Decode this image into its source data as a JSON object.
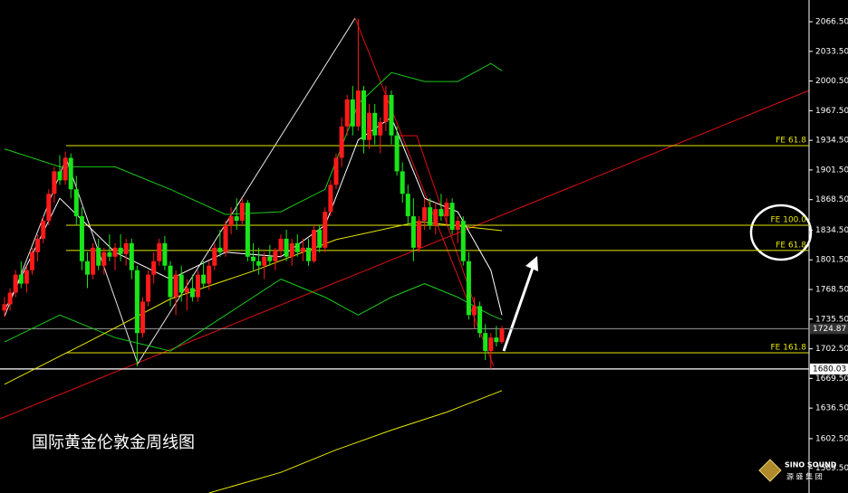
{
  "chart_data": {
    "type": "candlestick",
    "title": "国际黄金伦敦金周线图",
    "up_color": "#ff1a1a",
    "down_color": "#19e619",
    "ylim": [
      1542,
      2090.7
    ],
    "yticks": [
      {
        "value": 2066.5,
        "label": "2066.50"
      },
      {
        "value": 2033.5,
        "label": "2033.50"
      },
      {
        "value": 2000.5,
        "label": "2000.50"
      },
      {
        "value": 1967.5,
        "label": "1967.50"
      },
      {
        "value": 1934.5,
        "label": "1934.50"
      },
      {
        "value": 1901.5,
        "label": "1901.50"
      },
      {
        "value": 1868.5,
        "label": "1868.50"
      },
      {
        "value": 1834.5,
        "label": "1834.50"
      },
      {
        "value": 1801.5,
        "label": "1801.50"
      },
      {
        "value": 1768.5,
        "label": "1768.50"
      },
      {
        "value": 1735.5,
        "label": "1735.50"
      },
      {
        "value": 1702.5,
        "label": "1702.50"
      },
      {
        "value": 1669.5,
        "label": "1669.50"
      },
      {
        "value": 1636.5,
        "label": "1636.50"
      },
      {
        "value": 1602.5,
        "label": "1602.50"
      },
      {
        "value": 1569.5,
        "label": "1569.50"
      }
    ],
    "candles": [
      [
        1745,
        1760,
        1738,
        1752
      ],
      [
        1752,
        1770,
        1745,
        1765
      ],
      [
        1765,
        1790,
        1760,
        1785
      ],
      [
        1785,
        1800,
        1770,
        1775
      ],
      [
        1775,
        1795,
        1765,
        1790
      ],
      [
        1790,
        1815,
        1785,
        1810
      ],
      [
        1810,
        1830,
        1800,
        1825
      ],
      [
        1825,
        1850,
        1820,
        1845
      ],
      [
        1845,
        1880,
        1840,
        1875
      ],
      [
        1875,
        1905,
        1865,
        1900
      ],
      [
        1900,
        1918,
        1885,
        1890
      ],
      [
        1890,
        1922,
        1885,
        1915
      ],
      [
        1915,
        1920,
        1870,
        1880
      ],
      [
        1880,
        1895,
        1840,
        1850
      ],
      [
        1850,
        1860,
        1790,
        1800
      ],
      [
        1800,
        1810,
        1770,
        1785
      ],
      [
        1785,
        1820,
        1780,
        1815
      ],
      [
        1815,
        1825,
        1790,
        1795
      ],
      [
        1795,
        1815,
        1785,
        1810
      ],
      [
        1810,
        1830,
        1800,
        1805
      ],
      [
        1805,
        1820,
        1790,
        1815
      ],
      [
        1815,
        1830,
        1800,
        1808
      ],
      [
        1808,
        1825,
        1795,
        1820
      ],
      [
        1820,
        1825,
        1780,
        1790
      ],
      [
        1790,
        1795,
        1683,
        1720
      ],
      [
        1720,
        1760,
        1715,
        1755
      ],
      [
        1755,
        1790,
        1750,
        1785
      ],
      [
        1785,
        1810,
        1775,
        1800
      ],
      [
        1800,
        1825,
        1795,
        1820
      ],
      [
        1820,
        1828,
        1790,
        1795
      ],
      [
        1795,
        1800,
        1750,
        1760
      ],
      [
        1760,
        1790,
        1740,
        1785
      ],
      [
        1785,
        1795,
        1755,
        1765
      ],
      [
        1765,
        1780,
        1745,
        1770
      ],
      [
        1770,
        1785,
        1755,
        1760
      ],
      [
        1760,
        1790,
        1755,
        1785
      ],
      [
        1785,
        1800,
        1770,
        1775
      ],
      [
        1775,
        1800,
        1768,
        1795
      ],
      [
        1795,
        1820,
        1790,
        1815
      ],
      [
        1815,
        1835,
        1805,
        1810
      ],
      [
        1810,
        1845,
        1805,
        1840
      ],
      [
        1840,
        1860,
        1830,
        1850
      ],
      [
        1850,
        1870,
        1835,
        1845
      ],
      [
        1845,
        1870,
        1840,
        1865
      ],
      [
        1865,
        1868,
        1800,
        1805
      ],
      [
        1805,
        1820,
        1790,
        1800
      ],
      [
        1800,
        1815,
        1785,
        1795
      ],
      [
        1795,
        1810,
        1780,
        1805
      ],
      [
        1805,
        1818,
        1795,
        1800
      ],
      [
        1800,
        1815,
        1790,
        1812
      ],
      [
        1812,
        1830,
        1805,
        1825
      ],
      [
        1825,
        1835,
        1800,
        1805
      ],
      [
        1805,
        1825,
        1795,
        1820
      ],
      [
        1820,
        1830,
        1805,
        1810
      ],
      [
        1810,
        1825,
        1800,
        1815
      ],
      [
        1815,
        1825,
        1795,
        1800
      ],
      [
        1800,
        1840,
        1798,
        1835
      ],
      [
        1835,
        1840,
        1810,
        1815
      ],
      [
        1815,
        1860,
        1810,
        1855
      ],
      [
        1855,
        1890,
        1850,
        1885
      ],
      [
        1885,
        1920,
        1880,
        1915
      ],
      [
        1915,
        1960,
        1905,
        1950
      ],
      [
        1950,
        1985,
        1940,
        1980
      ],
      [
        1980,
        1995,
        1940,
        1950
      ],
      [
        1950,
        2070,
        1945,
        1990
      ],
      [
        1990,
        1995,
        1920,
        1935
      ],
      [
        1935,
        1975,
        1925,
        1965
      ],
      [
        1965,
        1975,
        1930,
        1940
      ],
      [
        1940,
        1960,
        1920,
        1955
      ],
      [
        1955,
        1995,
        1945,
        1985
      ],
      [
        1985,
        1990,
        1930,
        1940
      ],
      [
        1940,
        1950,
        1895,
        1900
      ],
      [
        1900,
        1910,
        1865,
        1875
      ],
      [
        1875,
        1885,
        1840,
        1850
      ],
      [
        1850,
        1870,
        1800,
        1815
      ],
      [
        1815,
        1850,
        1810,
        1845
      ],
      [
        1845,
        1870,
        1835,
        1860
      ],
      [
        1860,
        1870,
        1835,
        1840
      ],
      [
        1840,
        1865,
        1830,
        1858
      ],
      [
        1858,
        1875,
        1845,
        1850
      ],
      [
        1850,
        1870,
        1840,
        1865
      ],
      [
        1865,
        1870,
        1830,
        1835
      ],
      [
        1835,
        1850,
        1820,
        1845
      ],
      [
        1845,
        1850,
        1795,
        1800
      ],
      [
        1800,
        1810,
        1735,
        1740
      ],
      [
        1740,
        1760,
        1725,
        1750
      ],
      [
        1750,
        1755,
        1715,
        1720
      ],
      [
        1720,
        1730,
        1690,
        1700
      ],
      [
        1700,
        1720,
        1680,
        1715
      ],
      [
        1715,
        1728,
        1705,
        1710
      ],
      [
        1710,
        1728,
        1708,
        1724.87
      ]
    ],
    "lines": [
      {
        "color": "#19c819",
        "x": [
          0,
          10,
          20,
          30,
          40,
          50,
          58,
          64,
          70,
          76,
          82,
          88,
          90
        ],
        "values": [
          1925,
          1905,
          1905,
          1880,
          1852,
          1855,
          1880,
          1975,
          2010,
          2000,
          2000,
          2020,
          2012
        ]
      },
      {
        "color": "#19c819",
        "x": [
          0,
          10,
          20,
          30,
          40,
          50,
          58,
          64,
          70,
          76,
          82,
          88,
          90
        ],
        "values": [
          1710,
          1740,
          1715,
          1700,
          1740,
          1780,
          1760,
          1740,
          1760,
          1775,
          1760,
          1740,
          1735
        ]
      },
      {
        "color": "#ffffff",
        "x": [
          0,
          10,
          20,
          30,
          40,
          50,
          58,
          64,
          70,
          76,
          82,
          88,
          90
        ],
        "values": [
          1745,
          1870,
          1810,
          1780,
          1810,
          1805,
          1840,
          1935,
          1960,
          1870,
          1855,
          1790,
          1740
        ]
      },
      {
        "color": "#e6e600",
        "x": [
          0,
          16,
          30,
          45,
          60,
          75,
          90
        ],
        "values": [
          1663,
          1713,
          1758,
          1789,
          1824,
          1844,
          1834
        ]
      },
      {
        "color": "#e6e600",
        "x": [
          37,
          50,
          60,
          70,
          80,
          90
        ],
        "values": [
          1542,
          1565,
          1590,
          1612,
          1632,
          1656
        ]
      }
    ],
    "levels": [
      {
        "label": "FE 61.8",
        "value": 1928.6,
        "color": "#e6e600"
      },
      {
        "label": "FE 100.0",
        "value": 1840,
        "color": "#e6e600"
      },
      {
        "label": "FE 61.8",
        "value": 1812,
        "color": "#e6e600"
      },
      {
        "label": "FE 161.8",
        "value": 1698,
        "color": "#e6e600"
      }
    ],
    "price_tags": [
      1724.87,
      1680.03
    ],
    "logo": {
      "name": "SINO SOUND",
      "subtitle": "源 盛 集 团"
    }
  }
}
